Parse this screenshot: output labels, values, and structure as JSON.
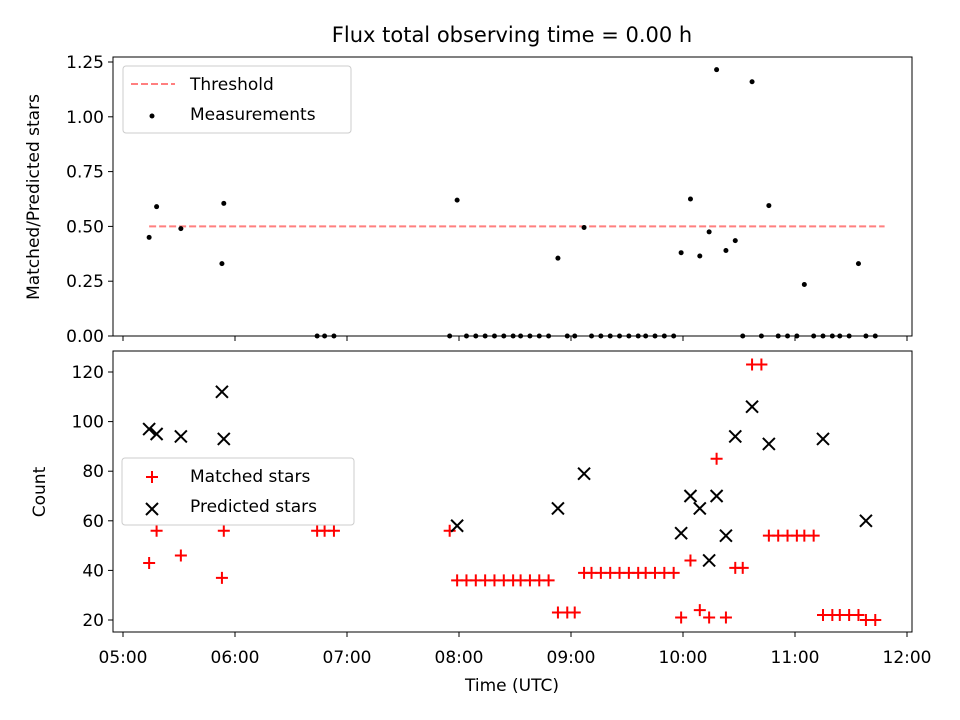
{
  "figure": {
    "title": "Flux total observing time = 0.00 h"
  },
  "chart_data": [
    {
      "type": "scatter",
      "panel": "top",
      "xlabel": "",
      "ylabel": "Matched/Predicted stars",
      "xlim": [
        "05:00",
        "12:00"
      ],
      "ylim": [
        0,
        1.25
      ],
      "yticks": [
        "0.00",
        "0.25",
        "0.50",
        "0.75",
        "1.00",
        "1.25"
      ],
      "legend": {
        "placement": "upper-left",
        "entries": [
          "Threshold",
          "Measurements"
        ]
      },
      "series": [
        {
          "name": "Threshold",
          "kind": "dashed-line",
          "color": "#ff7f7f",
          "x": [
            "05:14",
            "11:48"
          ],
          "y": [
            0.5,
            0.5
          ]
        },
        {
          "name": "Measurements",
          "kind": "dot",
          "color": "#000000",
          "x": [
            "05:14",
            "05:18",
            "05:31",
            "05:53",
            "05:54",
            "06:44",
            "06:48",
            "06:53",
            "07:55",
            "07:59",
            "08:04",
            "08:09",
            "08:14",
            "08:19",
            "08:24",
            "08:29",
            "08:33",
            "08:38",
            "08:43",
            "08:48",
            "08:53",
            "08:58",
            "09:02",
            "09:07",
            "09:11",
            "09:16",
            "09:21",
            "09:26",
            "09:31",
            "09:36",
            "09:40",
            "09:45",
            "09:50",
            "09:55",
            "09:59",
            "10:04",
            "10:09",
            "10:14",
            "10:18",
            "10:23",
            "10:28",
            "10:32",
            "10:37",
            "10:42",
            "10:46",
            "10:51",
            "10:56",
            "11:01",
            "11:05",
            "11:10",
            "11:15",
            "11:20",
            "11:24",
            "11:29",
            "11:34",
            "11:38",
            "11:43"
          ],
          "y": [
            0.45,
            0.59,
            0.49,
            0.33,
            0.605,
            0,
            0,
            0,
            0,
            0.62,
            0,
            0,
            0,
            0,
            0,
            0,
            0,
            0,
            0,
            0,
            0.355,
            0,
            0,
            0.495,
            0,
            0,
            0,
            0,
            0,
            0,
            0,
            0,
            0,
            0,
            0.38,
            0.625,
            0.365,
            0.475,
            1.215,
            0.39,
            0.435,
            0,
            1.16,
            0,
            0.595,
            0,
            0,
            0,
            0.235,
            0,
            0,
            0,
            0,
            0,
            0.33,
            0,
            0
          ]
        }
      ]
    },
    {
      "type": "scatter",
      "panel": "bottom",
      "xlabel": "Time (UTC)",
      "ylabel": "Count",
      "xlim": [
        "05:00",
        "12:00"
      ],
      "ylim": [
        15,
        129
      ],
      "xticks": [
        "05:00",
        "06:00",
        "07:00",
        "08:00",
        "09:00",
        "10:00",
        "11:00",
        "12:00"
      ],
      "yticks": [
        "20",
        "40",
        "60",
        "80",
        "100",
        "120"
      ],
      "legend": {
        "placement": "center-left",
        "entries": [
          "Matched stars",
          "Predicted stars"
        ]
      },
      "series": [
        {
          "name": "Matched stars",
          "kind": "plus",
          "color": "#ff0000",
          "x": [
            "05:14",
            "05:18",
            "05:31",
            "05:53",
            "05:54",
            "06:44",
            "06:48",
            "06:53",
            "07:55",
            "07:59",
            "08:04",
            "08:09",
            "08:14",
            "08:19",
            "08:24",
            "08:29",
            "08:33",
            "08:38",
            "08:43",
            "08:48",
            "08:53",
            "08:58",
            "09:02",
            "09:07",
            "09:11",
            "09:16",
            "09:21",
            "09:26",
            "09:31",
            "09:36",
            "09:40",
            "09:45",
            "09:50",
            "09:55",
            "09:59",
            "10:04",
            "10:09",
            "10:14",
            "10:18",
            "10:23",
            "10:28",
            "10:32",
            "10:37",
            "10:42",
            "10:46",
            "10:51",
            "10:56",
            "11:01",
            "11:05",
            "11:10",
            "11:15",
            "11:20",
            "11:24",
            "11:29",
            "11:34",
            "11:38",
            "11:43"
          ],
          "y": [
            43,
            56,
            46,
            37,
            56,
            56,
            56,
            56,
            56,
            36,
            36,
            36,
            36,
            36,
            36,
            36,
            36,
            36,
            36,
            36,
            23,
            23,
            23,
            39,
            39,
            39,
            39,
            39,
            39,
            39,
            39,
            39,
            39,
            39,
            21,
            44,
            24,
            21,
            85,
            21,
            41,
            41,
            123,
            123,
            54,
            54,
            54,
            54,
            54,
            54,
            22,
            22,
            22,
            22,
            22,
            20,
            20
          ]
        },
        {
          "name": "Predicted stars",
          "kind": "x",
          "color": "#000000",
          "x": [
            "05:14",
            "05:18",
            "05:31",
            "05:53",
            "05:54",
            "07:59",
            "08:53",
            "09:07",
            "09:59",
            "10:04",
            "10:09",
            "10:14",
            "10:18",
            "10:23",
            "10:28",
            "10:37",
            "10:46",
            "11:15",
            "11:38"
          ],
          "y": [
            97,
            95,
            94,
            112,
            93,
            58,
            65,
            79,
            55,
            70,
            65,
            44,
            70,
            54,
            94,
            106,
            91,
            93,
            60
          ]
        }
      ]
    }
  ]
}
